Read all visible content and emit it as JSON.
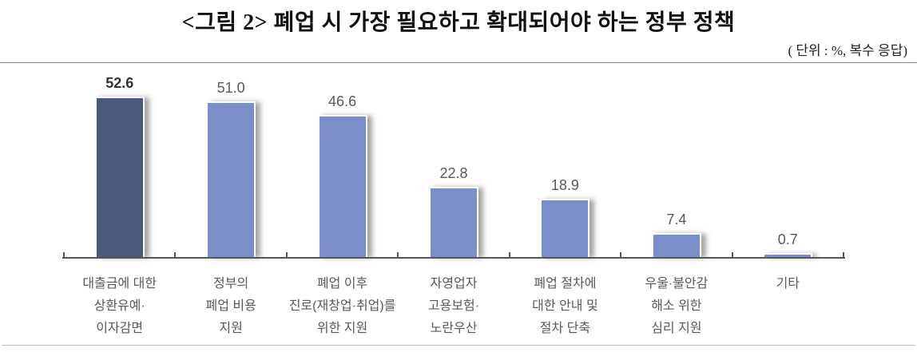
{
  "header": {
    "title": "<그림 2> 폐업 시 가장 필요하고 확대되어야 하는 정부 정책",
    "unit_note": "( 단위 : %, 복수 응답)"
  },
  "chart_data": {
    "type": "bar",
    "title": "<그림 2> 폐업 시 가장 필요하고 확대되어야 하는 정부 정책",
    "unit": "%",
    "note": "복수 응답",
    "categories": [
      [
        "대출금에 대한",
        "상환유예·",
        "이자감면"
      ],
      [
        "정부의",
        "폐업 비용",
        "지원"
      ],
      [
        "폐업 이후",
        "진로(재창업·취업)를",
        "위한 지원"
      ],
      [
        "자영업자",
        "고용보험·",
        "노란우산"
      ],
      [
        "폐업 절차에",
        "대한 안내 및",
        "절차 단축"
      ],
      [
        "우울·불안감",
        "해소 위한",
        "심리 지원"
      ],
      [
        "기타"
      ]
    ],
    "values": [
      52.6,
      51.0,
      46.6,
      22.8,
      18.9,
      7.4,
      0.7
    ],
    "value_labels": [
      "52.6",
      "51.0",
      "46.6",
      "22.8",
      "18.9",
      "7.4",
      "0.7"
    ],
    "highlight_index": 0,
    "ylim": [
      0,
      55
    ],
    "grid": false,
    "legend": "none",
    "xlabel": "",
    "ylabel": "",
    "colors": {
      "bar": "#7B8EC9",
      "bar_highlight": "#4C597B",
      "axis": "#555555",
      "value_label": "#595959",
      "value_label_highlight": "#333333",
      "category_label": "#595959",
      "top_rule": "#8C8C8C",
      "bottom_rule": "#C0C0C0"
    }
  }
}
